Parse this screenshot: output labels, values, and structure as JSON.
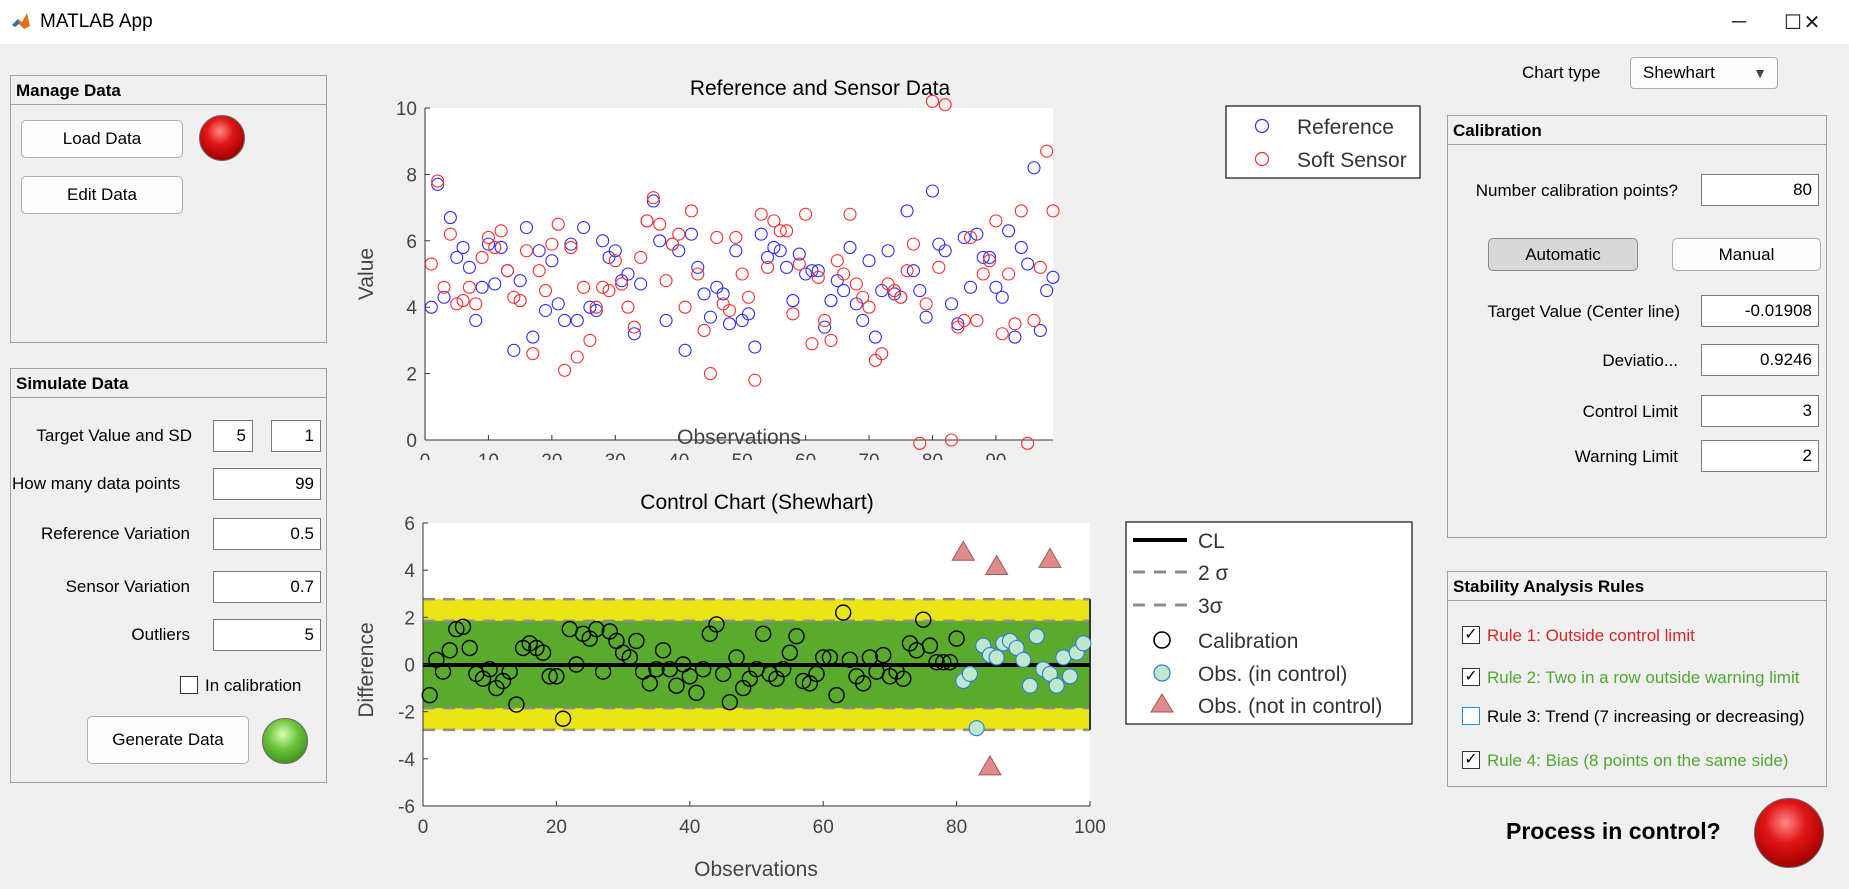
{
  "window": {
    "title": "MATLAB App",
    "minimize": "─",
    "maximize": "☐",
    "close": "✕"
  },
  "manage": {
    "title": "Manage Data",
    "load_label": "Load Data",
    "edit_label": "Edit Data"
  },
  "simulate": {
    "title": "Simulate Data",
    "target_label": "Target Value and SD",
    "target_value": "5",
    "target_sd": "1",
    "points_label": "How many data points",
    "points_value": "99",
    "refvar_label": "Reference Variation",
    "refvar_value": "0.5",
    "sensvar_label": "Sensor Variation",
    "sensvar_value": "0.7",
    "outliers_label": "Outliers",
    "outliers_value": "5",
    "incal_label": "In calibration",
    "generate_label": "Generate Data"
  },
  "chart_type": {
    "label": "Chart type",
    "value": "Shewhart"
  },
  "calibration": {
    "title": "Calibration",
    "npoints_label": "Number calibration points?",
    "npoints_value": "80",
    "auto_label": "Automatic",
    "manual_label": "Manual",
    "target_label": "Target Value (Center line)",
    "target_value": "-0.01908",
    "dev_label": "Deviatio...",
    "dev_value": "0.9246",
    "control_label": "Control Limit",
    "control_value": "3",
    "warning_label": "Warning Limit",
    "warning_value": "2"
  },
  "rules": {
    "title": "Stability Analysis Rules",
    "items": [
      {
        "label": "Rule 1: Outside control limit",
        "checked": true,
        "color": "#d62728"
      },
      {
        "label": "Rule 2: Two in a row outside warning limit",
        "checked": true,
        "color": "#4fa832"
      },
      {
        "label": "Rule 3: Trend (7 increasing or decreasing)",
        "checked": false,
        "color": "#000000"
      },
      {
        "label": "Rule 4: Bias (8 points on the same side)",
        "checked": true,
        "color": "#4fa832"
      }
    ]
  },
  "process": {
    "label": "Process in control?"
  },
  "colors": {
    "lamp_bad": "#e11616",
    "lamp_good": "#6cc43a",
    "control_band": "#ebe516",
    "warning_band": "#5aaa2e"
  },
  "chart_data": [
    {
      "type": "scatter",
      "title": "Reference and Sensor Data",
      "xlabel": "Observations",
      "ylabel": "Value",
      "xlim": [
        0,
        99
      ],
      "ylim": [
        0,
        10
      ],
      "xticks": [
        0,
        10,
        20,
        30,
        40,
        50,
        60,
        70,
        80,
        90
      ],
      "yticks": [
        0,
        2,
        4,
        6,
        8,
        10
      ],
      "legend_position": "top-right",
      "series": [
        {
          "name": "Reference",
          "color": "#2b2bff",
          "x": [
            1,
            2,
            3,
            4,
            5,
            6,
            7,
            8,
            9,
            10,
            11,
            12,
            13,
            14,
            15,
            16,
            17,
            18,
            19,
            20,
            21,
            22,
            23,
            24,
            25,
            26,
            27,
            28,
            29,
            30,
            31,
            32,
            33,
            34,
            35,
            36,
            37,
            38,
            39,
            40,
            41,
            42,
            43,
            44,
            45,
            46,
            47,
            48,
            49,
            50,
            51,
            52,
            53,
            54,
            55,
            56,
            57,
            58,
            59,
            60,
            61,
            62,
            63,
            64,
            65,
            66,
            67,
            68,
            69,
            70,
            71,
            72,
            73,
            74,
            75,
            76,
            77,
            78,
            79,
            80,
            81,
            82,
            83,
            84,
            85,
            86,
            87,
            88,
            89,
            90,
            91,
            92,
            93,
            94,
            95,
            96,
            97,
            98,
            99
          ],
          "y": [
            4.0,
            7.7,
            4.3,
            6.7,
            5.5,
            5.8,
            5.2,
            3.6,
            4.6,
            5.9,
            4.7,
            5.8,
            5.1,
            2.7,
            4.8,
            6.4,
            3.1,
            5.7,
            3.9,
            5.4,
            4.1,
            3.6,
            5.9,
            3.6,
            6.4,
            4.0,
            3.9,
            6.0,
            5.5,
            5.7,
            4.8,
            5.0,
            3.2,
            4.7,
            6.6,
            7.2,
            6.0,
            3.6,
            5.9,
            5.7,
            2.7,
            6.2,
            5.2,
            4.4,
            3.7,
            4.6,
            4.4,
            3.5,
            5.7,
            3.6,
            3.8,
            2.8,
            6.2,
            5.5,
            5.8,
            5.7,
            5.2,
            4.2,
            5.6,
            5.0,
            5.1,
            5.1,
            3.4,
            4.2,
            4.8,
            4.5,
            5.8,
            4.1,
            3.6,
            5.4,
            3.1,
            4.5,
            5.7,
            4.4,
            4.3,
            6.9,
            5.1,
            4.5,
            3.7,
            7.5,
            5.9,
            5.7,
            4.1,
            3.5,
            6.1,
            4.6,
            6.2,
            5.5,
            5.5,
            4.6,
            4.3,
            6.3,
            3.1,
            5.8,
            5.3,
            8.2,
            3.3,
            4.5,
            4.9
          ]
        },
        {
          "name": "Soft Sensor",
          "color": "#ff2b2b",
          "x": [
            1,
            2,
            3,
            4,
            5,
            6,
            7,
            8,
            9,
            10,
            11,
            12,
            13,
            14,
            15,
            16,
            17,
            18,
            19,
            20,
            21,
            22,
            23,
            24,
            25,
            26,
            27,
            28,
            29,
            30,
            31,
            32,
            33,
            34,
            35,
            36,
            37,
            38,
            39,
            40,
            41,
            42,
            43,
            44,
            45,
            46,
            47,
            48,
            49,
            50,
            51,
            52,
            53,
            54,
            55,
            56,
            57,
            58,
            59,
            60,
            61,
            62,
            63,
            64,
            65,
            66,
            67,
            68,
            69,
            70,
            71,
            72,
            73,
            74,
            75,
            76,
            77,
            78,
            79,
            80,
            81,
            82,
            83,
            84,
            85,
            86,
            87,
            88,
            89,
            90,
            91,
            92,
            93,
            94,
            95,
            96,
            97,
            98,
            99
          ],
          "y": [
            5.3,
            7.8,
            4.6,
            6.2,
            4.1,
            4.2,
            4.6,
            4.1,
            5.5,
            6.1,
            5.8,
            6.3,
            5.1,
            4.3,
            4.2,
            5.7,
            2.6,
            5.1,
            4.5,
            5.9,
            6.5,
            2.1,
            5.8,
            2.5,
            4.6,
            3.0,
            4.0,
            4.6,
            4.5,
            5.4,
            4.7,
            4.0,
            3.4,
            5.5,
            6.6,
            7.3,
            6.5,
            4.8,
            5.9,
            6.2,
            4.0,
            6.9,
            5.0,
            3.3,
            2.0,
            6.1,
            4.1,
            3.9,
            6.1,
            5.0,
            4.3,
            1.8,
            6.8,
            5.2,
            6.6,
            6.3,
            6.3,
            3.8,
            5.3,
            6.8,
            2.9,
            4.9,
            3.6,
            3.0,
            5.4,
            5.0,
            6.8,
            4.7,
            4.3,
            4.0,
            2.4,
            2.6,
            4.7,
            4.5,
            4.3,
            5.1,
            5.9,
            -0.1,
            4.1,
            10.2,
            5.2,
            10.1,
            0.0,
            3.4,
            3.6,
            6.1,
            3.6,
            5.0,
            5.4,
            6.6,
            3.2,
            5.0,
            3.5,
            6.9,
            -0.1,
            3.6,
            5.2,
            8.7,
            6.9
          ]
        }
      ]
    },
    {
      "type": "scatter",
      "title": "Control Chart (Shewhart)",
      "xlabel": "Observations",
      "ylabel": "Difference",
      "xlim": [
        0,
        100
      ],
      "ylim": [
        -6,
        6
      ],
      "xticks": [
        0,
        20,
        40,
        60,
        80,
        100
      ],
      "yticks": [
        -6,
        -4,
        -2,
        0,
        2,
        4,
        6
      ],
      "center_line": -0.01908,
      "warning_limits": [
        -1.85,
        1.85
      ],
      "control_limits": [
        -2.77,
        2.77
      ],
      "legend_position": "right",
      "legend": [
        "CL",
        "2 σ",
        "3σ",
        "Calibration",
        "Obs. (in control)",
        "Obs. (not in control)"
      ],
      "series": [
        {
          "name": "Calibration",
          "color": "#000000",
          "x": [
            1,
            2,
            3,
            4,
            5,
            6,
            7,
            8,
            9,
            10,
            11,
            12,
            13,
            14,
            15,
            16,
            17,
            18,
            19,
            20,
            21,
            22,
            23,
            24,
            25,
            26,
            27,
            28,
            29,
            30,
            31,
            32,
            33,
            34,
            35,
            36,
            37,
            38,
            39,
            40,
            41,
            42,
            43,
            44,
            45,
            46,
            47,
            48,
            49,
            50,
            51,
            52,
            53,
            54,
            55,
            56,
            57,
            58,
            59,
            60,
            61,
            62,
            63,
            64,
            65,
            66,
            67,
            68,
            69,
            70,
            71,
            72,
            73,
            74,
            75,
            76,
            77,
            78,
            79,
            80
          ],
          "y": [
            -1.3,
            0.2,
            -0.3,
            0.6,
            1.5,
            1.6,
            0.7,
            -0.4,
            -0.6,
            -0.2,
            -1.0,
            -0.7,
            -0.3,
            -1.7,
            0.7,
            0.9,
            0.7,
            0.5,
            -0.5,
            -0.5,
            -2.3,
            1.5,
            0.0,
            1.3,
            1.1,
            1.5,
            -0.3,
            1.4,
            1.0,
            0.5,
            0.3,
            1.0,
            -0.3,
            -0.8,
            -0.2,
            0.6,
            -0.2,
            -0.9,
            0.0,
            -0.5,
            -1.2,
            -0.2,
            1.3,
            1.7,
            -0.4,
            -1.6,
            0.3,
            -1.0,
            -0.6,
            -0.2,
            1.3,
            -0.4,
            -0.6,
            -0.2,
            0.5,
            1.2,
            -0.7,
            -0.8,
            -0.4,
            0.3,
            0.3,
            -1.3,
            2.2,
            0.2,
            -0.5,
            -0.8,
            0.3,
            -0.3,
            0.4,
            -0.5,
            -0.3,
            -0.6,
            0.9,
            0.6,
            1.9,
            0.8,
            0.1,
            0.1,
            0.1,
            1.1
          ]
        },
        {
          "name": "Obs. (in control)",
          "color": "#8fe0a8",
          "x": [
            81,
            82,
            83,
            84,
            85,
            86,
            87,
            88,
            89,
            90,
            91,
            92,
            93,
            94,
            95,
            96,
            97,
            98,
            99
          ],
          "y": [
            -0.7,
            -0.4,
            -2.7,
            0.8,
            0.4,
            0.3,
            0.9,
            1.0,
            0.7,
            0.2,
            -0.9,
            1.2,
            -0.2,
            -0.4,
            -0.9,
            0.3,
            -0.5,
            0.5,
            0.9
          ]
        },
        {
          "name": "Obs. (not in control)",
          "color": "#e08a8a",
          "x": [
            81,
            86,
            94,
            85
          ],
          "y": [
            4.8,
            4.2,
            4.5,
            -4.3
          ]
        }
      ]
    }
  ]
}
